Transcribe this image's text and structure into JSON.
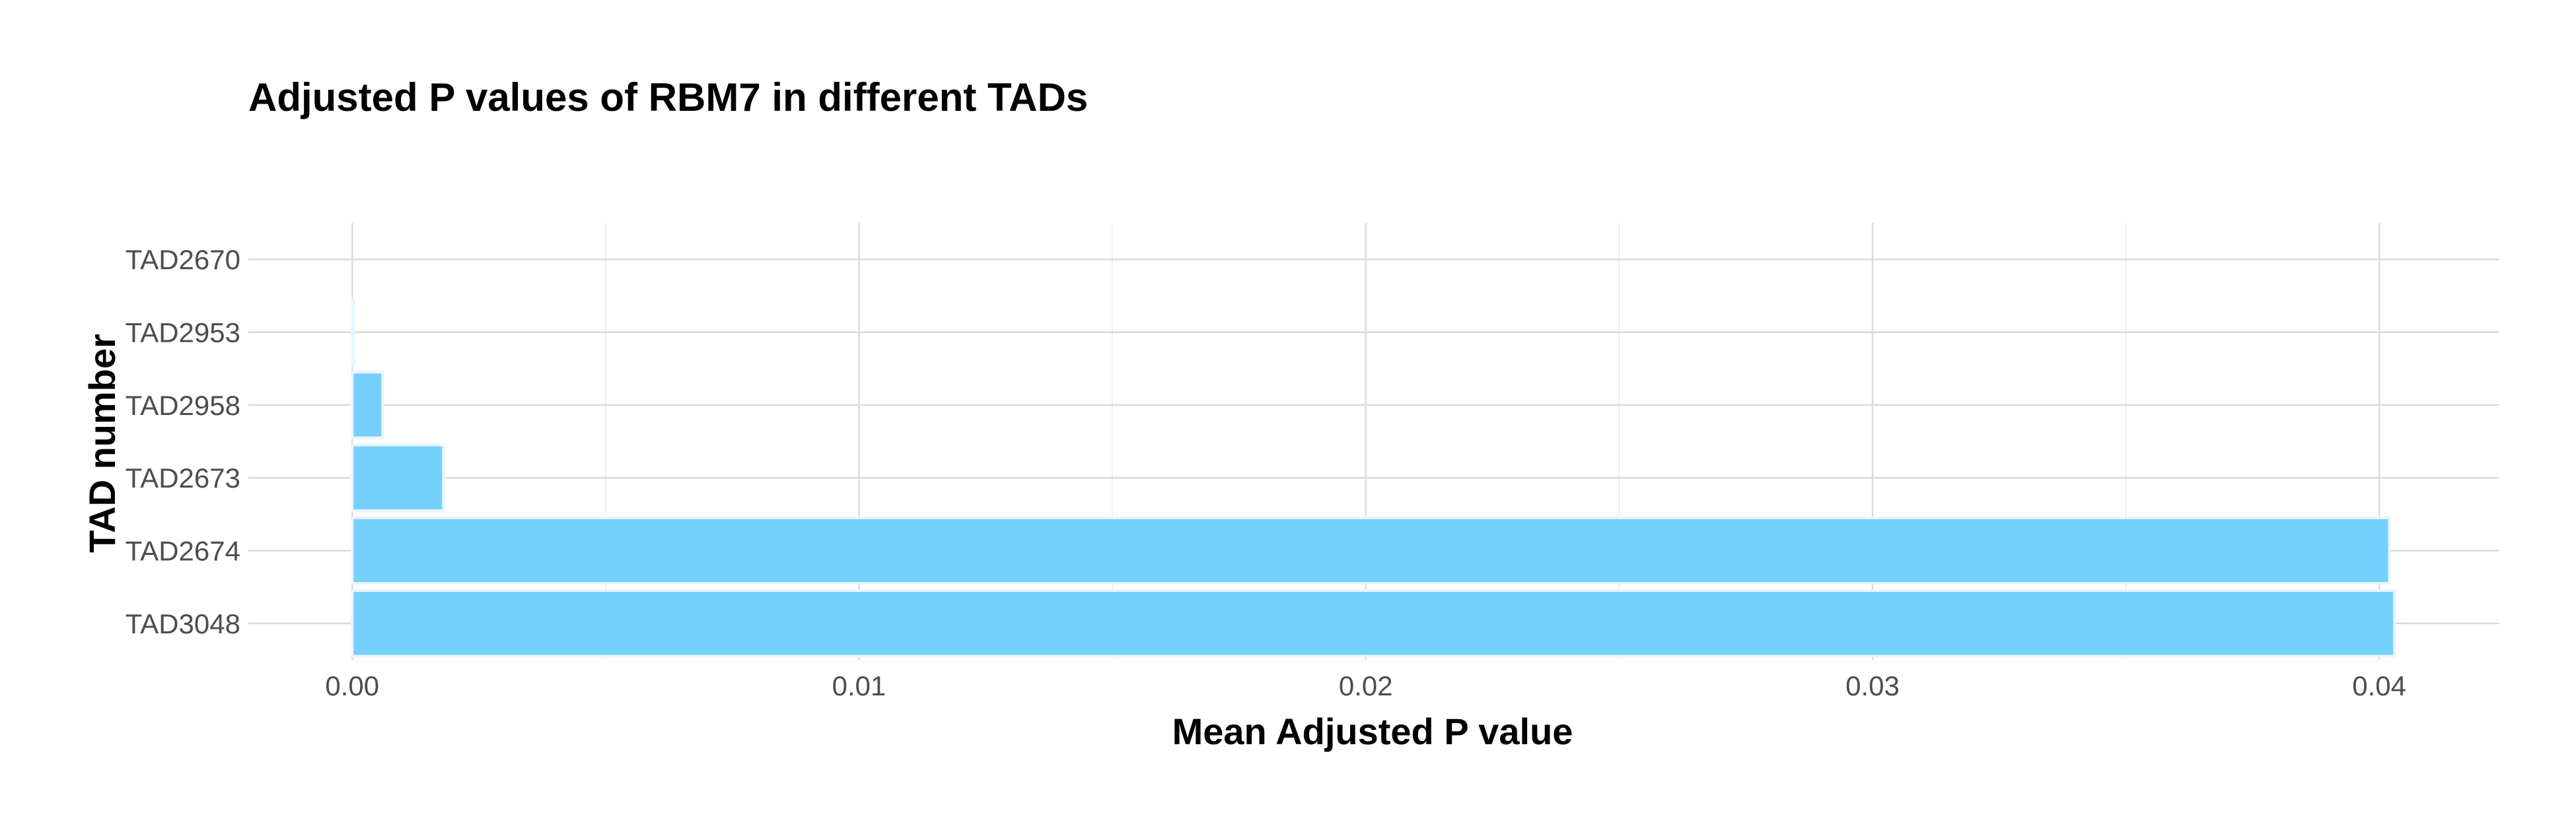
{
  "chart_data": {
    "type": "bar",
    "orientation": "horizontal",
    "title": "Adjusted P values of RBM7 in different TADs",
    "xlabel": "Mean Adjusted P value",
    "ylabel": "TAD number",
    "categories": [
      "TAD2670",
      "TAD2953",
      "TAD2958",
      "TAD2673",
      "TAD2674",
      "TAD3048"
    ],
    "values": [
      0.0,
      3e-05,
      0.0006,
      0.0018,
      0.0402,
      0.0403
    ],
    "xlim": [
      -0.00205,
      0.04237
    ],
    "x_ticks": [
      0.0,
      0.01,
      0.02,
      0.03,
      0.04
    ],
    "x_tick_labels": [
      "0.00",
      "0.01",
      "0.02",
      "0.03",
      "0.04"
    ],
    "grid": true,
    "legend": "none",
    "colors": {
      "bar_fill": "#6ECDFB",
      "bar_outline": "#E8F5FD",
      "grid_major": "#D9D9D9",
      "grid_minor": "#ECECEC",
      "tick_text": "#4D4D4D",
      "title_text": "#000000"
    }
  }
}
